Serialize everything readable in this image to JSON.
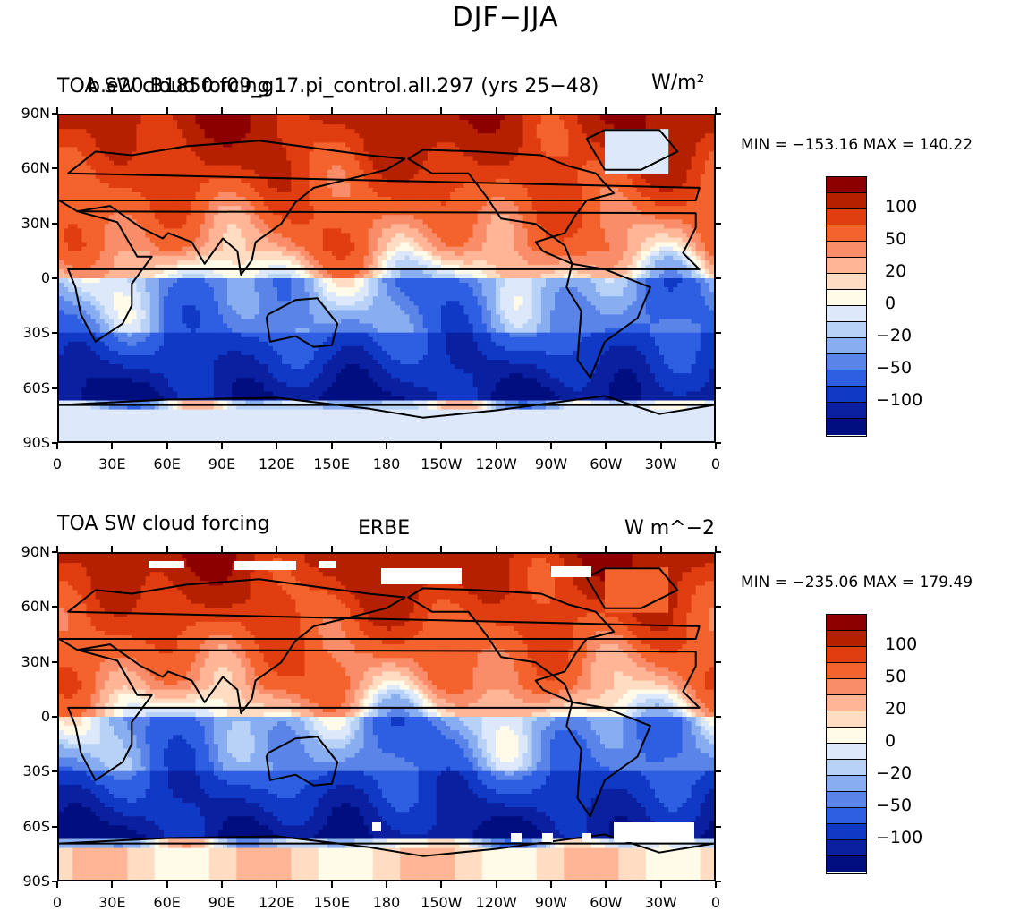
{
  "main_title": "DJF−JJA",
  "color_scale": [
    "#fffbe8",
    "#ffdcc2",
    "#ffb596",
    "#f98d6a",
    "#f4632d",
    "#e03d10",
    "#b52100",
    "#8c0000",
    "#dde9fb",
    "#b8d2f7",
    "#88adf0",
    "#5a84e8",
    "#2e5fe2",
    "#1039c6",
    "#0a20a0",
    "#000e80"
  ],
  "panels": [
    {
      "title_left": "TOA SW cloud forcing",
      "title_overlap": "b.e20.B1850.f09_g17.pi_control.all.297 (yrs 25−48)",
      "title_center": "",
      "units": "W/m²",
      "min_max": "MIN = −153.16  MAX = 140.22"
    },
    {
      "title_left": "TOA SW cloud forcing",
      "title_overlap": "",
      "title_center": "ERBE",
      "units": "W m^−2",
      "min_max": "MIN = −235.06  MAX = 179.49"
    }
  ],
  "lat_labels": [
    "90N",
    "60N",
    "30N",
    "0",
    "30S",
    "60S",
    "90S"
  ],
  "lon_labels": [
    "0",
    "30E",
    "60E",
    "90E",
    "120E",
    "150E",
    "180",
    "150W",
    "120W",
    "90W",
    "60W",
    "30W",
    "0"
  ],
  "colorbar": {
    "segment_colors": [
      "#8c0000",
      "#b52100",
      "#e03d10",
      "#f4632d",
      "#f98d6a",
      "#ffb596",
      "#ffdcc2",
      "#fffbe8",
      "#dde9fb",
      "#b8d2f7",
      "#88adf0",
      "#5a84e8",
      "#2e5fe2",
      "#1039c6",
      "#0a20a0",
      "#000e80"
    ],
    "labels": [
      "100",
      "50",
      "20",
      "0",
      "−20",
      "−50",
      "−100"
    ]
  }
}
